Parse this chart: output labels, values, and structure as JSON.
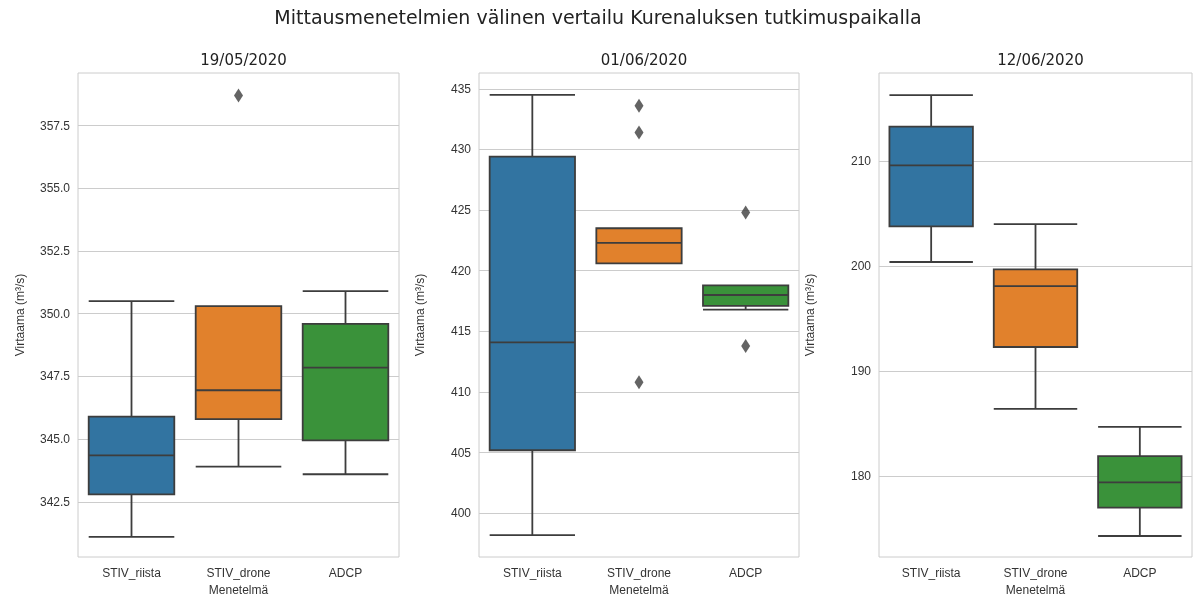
{
  "chart_data": [
    {
      "type": "box",
      "title": "Mittausmenetelmien välinen vertailu Kurenaluksen tutkimuspaikalla",
      "subtitle": "19/05/2020",
      "categories": [
        "STIV_riista",
        "STIV_drone",
        "ADCP"
      ],
      "colors": [
        "#3274a1",
        "#e1812c",
        "#3a923a"
      ],
      "xlabel": "Menetelmä",
      "ylabel": "Virtaama (m³/s)",
      "grid": "y",
      "marker": "diamond",
      "ylim": [
        340.3,
        359.6
      ],
      "yticks": [
        342.5,
        {
          "value": 345,
          "label": "345.0"
        },
        347.5,
        {
          "value": 350,
          "label": "350.0"
        },
        352.5,
        {
          "value": 355,
          "label": "355.0"
        },
        357.5
      ],
      "boxes": [
        {
          "low": 341.1,
          "q1": 342.8,
          "median": 344.35,
          "q3": 345.9,
          "high": 350.5
        },
        {
          "low": 343.9,
          "q1": 345.8,
          "median": 346.95,
          "q3": 350.3,
          "high": 350.3,
          "outliers": [
            358.7
          ]
        },
        {
          "low": 343.6,
          "q1": 344.95,
          "median": 347.85,
          "q3": 349.6,
          "high": 350.9
        }
      ]
    },
    {
      "type": "box",
      "subtitle": "01/06/2020",
      "categories": [
        "STIV_riista",
        "STIV_drone",
        "ADCP"
      ],
      "colors": [
        "#3274a1",
        "#e1812c",
        "#3a923a"
      ],
      "xlabel": "Menetelmä",
      "ylabel": "Virtaama (m³/s)",
      "grid": "y",
      "marker": "diamond",
      "ylim": [
        396.4,
        436.3
      ],
      "yticks": [
        400,
        405,
        410,
        415,
        420,
        425,
        430,
        435
      ],
      "boxes": [
        {
          "low": 398.2,
          "q1": 405.2,
          "median": 414.1,
          "q3": 429.4,
          "high": 434.5
        },
        {
          "low": 420.6,
          "q1": 420.6,
          "median": 422.3,
          "q3": 423.5,
          "high": 423.5,
          "outliers": [
            433.6,
            431.4,
            410.8
          ]
        },
        {
          "low": 416.8,
          "q1": 417.1,
          "median": 418,
          "q3": 418.8,
          "high": 418.8,
          "outliers": [
            424.8,
            413.8
          ]
        }
      ]
    },
    {
      "type": "box",
      "subtitle": "12/06/2020",
      "categories": [
        "STIV_riista",
        "STIV_drone",
        "ADCP"
      ],
      "colors": [
        "#3274a1",
        "#e1812c",
        "#3a923a"
      ],
      "xlabel": "Menetelmä",
      "ylabel": "Virtaama (m³/s)",
      "grid": "y",
      "ylim": [
        172.3,
        218.4
      ],
      "yticks": [
        180,
        190,
        200,
        210
      ],
      "boxes": [
        {
          "low": 200.4,
          "q1": 203.8,
          "median": 209.6,
          "q3": 213.3,
          "high": 216.3
        },
        {
          "low": 186.4,
          "q1": 192.3,
          "median": 198.1,
          "q3": 199.7,
          "high": 204
        },
        {
          "low": 174.3,
          "q1": 177,
          "median": 179.4,
          "q3": 181.9,
          "high": 184.7
        }
      ]
    }
  ]
}
